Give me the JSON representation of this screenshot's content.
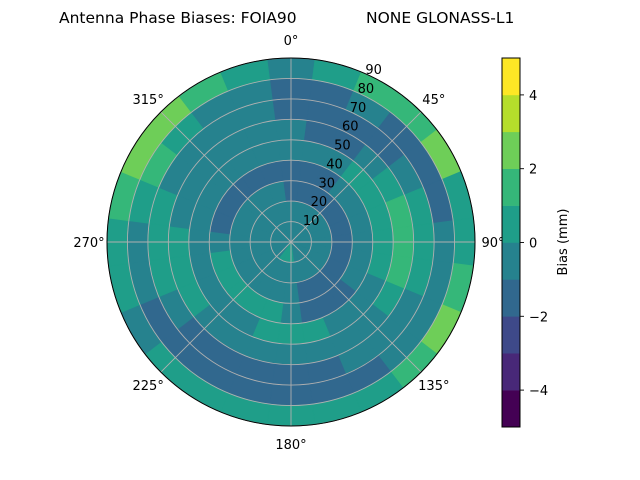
{
  "chart_data": {
    "type": "heatmap",
    "subtype": "polar-filled-contour",
    "title_left": "Antenna Phase Biases: FOIA90",
    "title_right": "NONE GLONASS-L1",
    "theta_tick_labels": [
      "0°",
      "45°",
      "90°",
      "135°",
      "180°",
      "225°",
      "270°",
      "315°"
    ],
    "theta_direction": "clockwise",
    "theta_zero": "north",
    "radial_tick_labels": [
      "10",
      "20",
      "30",
      "40",
      "50",
      "60",
      "70",
      "80",
      "90"
    ],
    "rlim": [
      0,
      90
    ],
    "grid": true,
    "colorbar": {
      "label": "Bias (mm)",
      "levels": [
        -5,
        -4,
        -3,
        -2,
        -1,
        0,
        1,
        2,
        3,
        4,
        5
      ],
      "tick_values": [
        -4,
        -2,
        0,
        2,
        4
      ],
      "tick_labels": [
        "−4",
        "−2",
        "0",
        "2",
        "4"
      ],
      "colormap": "viridis",
      "colors": [
        "#440154",
        "#482878",
        "#3e4989",
        "#31688e",
        "#26828e",
        "#1f9e89",
        "#35b779",
        "#6ece58",
        "#b5de2b",
        "#fde725"
      ]
    },
    "azimuth_deg": [
      0,
      15,
      30,
      45,
      60,
      75,
      90,
      105,
      120,
      135,
      150,
      165,
      180,
      195,
      210,
      225,
      240,
      255,
      270,
      285,
      300,
      315,
      330,
      345
    ],
    "zenith_deg": [
      5,
      15,
      25,
      35,
      45,
      55,
      65,
      75,
      85
    ],
    "values_mm": [
      [
        -0.5,
        -0.5,
        -0.5,
        -0.5,
        -0.5,
        -0.5,
        -0.5,
        -0.5,
        -0.5,
        -0.5,
        -0.5,
        -0.5,
        0.5,
        0.5,
        0.5,
        -0.5,
        -0.5,
        -0.5,
        -0.5,
        -0.5,
        -0.5,
        -0.5,
        -0.5,
        -0.5
      ],
      [
        -0.5,
        -0.5,
        -0.5,
        -0.5,
        -0.5,
        -0.5,
        -0.5,
        -0.5,
        -0.5,
        -0.5,
        -0.5,
        -0.5,
        -0.5,
        -0.5,
        -0.5,
        -0.5,
        -0.5,
        -0.5,
        -0.5,
        -0.5,
        -0.5,
        -0.5,
        -0.5,
        -0.5
      ],
      [
        -1.5,
        -1.5,
        -1.5,
        -1.5,
        -1.5,
        -1.5,
        -1.5,
        -1.5,
        -1.5,
        -1.5,
        -1.5,
        -1.5,
        -0.5,
        -0.5,
        -0.5,
        -0.5,
        -0.5,
        -0.5,
        -0.5,
        -0.5,
        -0.5,
        -0.5,
        -0.5,
        -0.5
      ],
      [
        -1.5,
        -1.5,
        -1.5,
        -0.5,
        -0.5,
        -0.5,
        -0.5,
        -0.5,
        -0.5,
        -1.5,
        -1.5,
        -1.5,
        -0.5,
        0.5,
        0.5,
        0.5,
        0.5,
        0.5,
        -0.5,
        -1.5,
        -1.5,
        -1.5,
        -1.5,
        -1.5
      ],
      [
        -0.5,
        -0.5,
        -0.5,
        0.5,
        0.5,
        0.5,
        0.5,
        0.5,
        -0.5,
        -0.5,
        -0.5,
        0.5,
        0.5,
        0.5,
        -0.5,
        -0.5,
        -0.5,
        -0.5,
        -0.5,
        -0.5,
        -0.5,
        -0.5,
        -0.5,
        -0.5
      ],
      [
        -0.5,
        -1.5,
        -1.5,
        -0.5,
        0.5,
        1.5,
        1.5,
        1.5,
        0.5,
        -0.5,
        -0.5,
        -0.5,
        -0.5,
        -0.5,
        -0.5,
        -0.5,
        0.5,
        0.5,
        0.5,
        -0.5,
        -0.5,
        -0.5,
        -0.5,
        -0.5
      ],
      [
        -1.5,
        -1.5,
        -1.5,
        -1.5,
        -0.5,
        0.5,
        0.5,
        0.5,
        -0.5,
        -0.5,
        -0.5,
        -1.5,
        -1.5,
        -1.5,
        -1.5,
        -1.5,
        -0.5,
        0.5,
        0.5,
        0.5,
        -0.5,
        -0.5,
        -0.5,
        -0.5
      ],
      [
        -1.5,
        -1.5,
        -0.5,
        -1.5,
        -1.5,
        -1.5,
        -0.5,
        -0.5,
        -0.5,
        -0.5,
        -1.5,
        -1.5,
        -1.5,
        -1.5,
        -1.5,
        -1.5,
        -1.5,
        -0.5,
        -0.5,
        0.5,
        1.5,
        0.5,
        -0.5,
        -0.5
      ],
      [
        -0.5,
        0.5,
        1.5,
        1.5,
        2.5,
        0.5,
        0.5,
        1.5,
        2.5,
        1.5,
        0.5,
        0.5,
        0.5,
        0.5,
        0.5,
        0.5,
        -0.5,
        0.5,
        0.5,
        1.5,
        2.5,
        2.5,
        1.5,
        0.5
      ]
    ]
  }
}
